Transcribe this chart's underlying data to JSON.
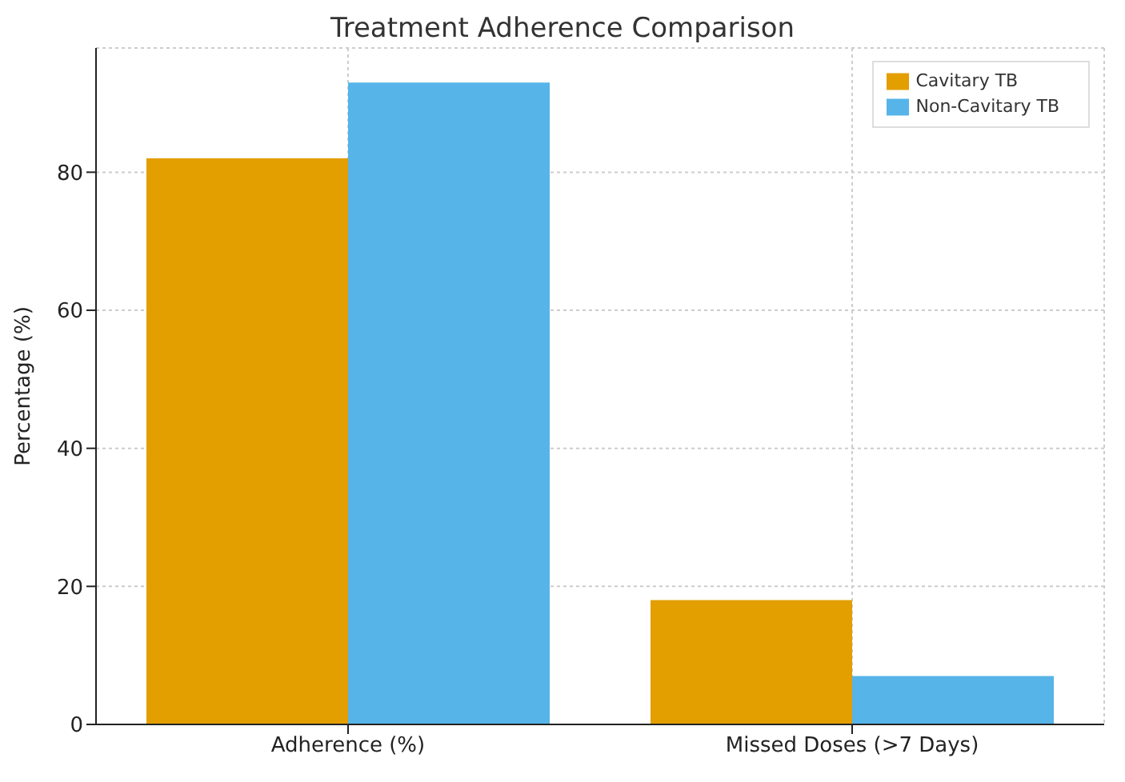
{
  "chart_data": {
    "type": "bar",
    "title": "Treatment Adherence Comparison",
    "ylabel": "Percentage (%)",
    "categories": [
      "Adherence (%)",
      "Missed Doses (>7 Days)"
    ],
    "series": [
      {
        "name": "Cavitary TB",
        "color": "#e39e00",
        "values": [
          82,
          18
        ]
      },
      {
        "name": "Non-Cavitary TB",
        "color": "#56b4e9",
        "values": [
          93,
          7
        ]
      }
    ],
    "ylim": [
      0,
      98
    ],
    "yticks": [
      0,
      20,
      40,
      60,
      80
    ],
    "grid": true,
    "legend": "top right"
  }
}
